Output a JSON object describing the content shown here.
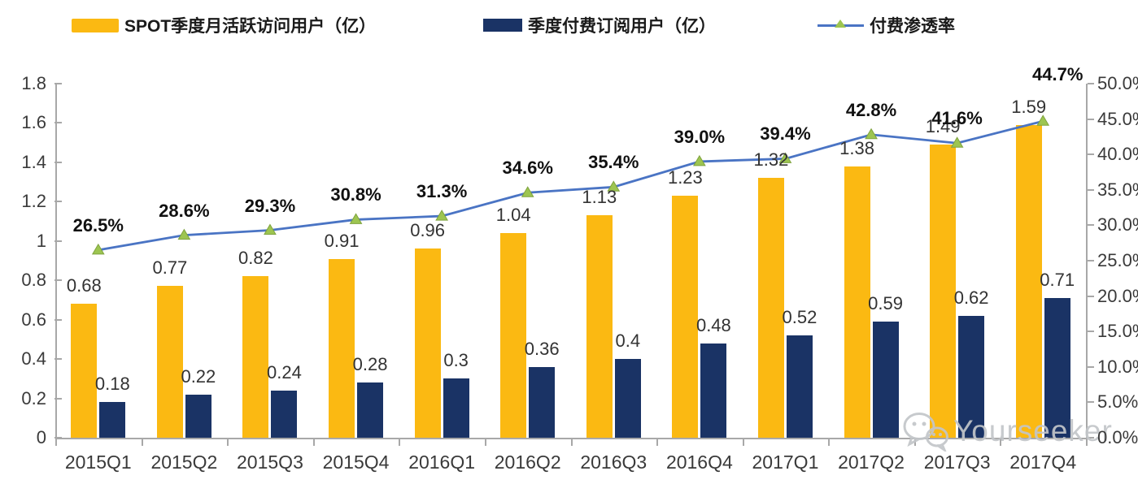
{
  "legend": {
    "items": [
      {
        "label": "SPOT季度月活跃访问用户（亿）",
        "swatch": "yellow-bar"
      },
      {
        "label": "季度付费订阅用户（亿）",
        "swatch": "navy-bar"
      },
      {
        "label": "付费渗透率",
        "swatch": "line-triangle-marker"
      }
    ]
  },
  "chart_data": {
    "type": "bar+line",
    "categories": [
      "2015Q1",
      "2015Q2",
      "2015Q3",
      "2015Q4",
      "2016Q1",
      "2016Q2",
      "2016Q3",
      "2016Q4",
      "2017Q1",
      "2017Q2",
      "2017Q3",
      "2017Q4"
    ],
    "series": [
      {
        "name": "SPOT季度月活跃访问用户（亿）",
        "type": "bar",
        "axis": "left",
        "color": "#FBB912",
        "values": [
          0.68,
          0.77,
          0.82,
          0.91,
          0.96,
          1.04,
          1.13,
          1.23,
          1.32,
          1.38,
          1.49,
          1.59
        ],
        "labels": [
          "0.68",
          "0.77",
          "0.82",
          "0.91",
          "0.96",
          "1.04",
          "1.13",
          "1.23",
          "1.32",
          "1.38",
          "1.49",
          "1.59"
        ]
      },
      {
        "name": "季度付费订阅用户（亿）",
        "type": "bar",
        "axis": "left",
        "color": "#1A3365",
        "values": [
          0.18,
          0.22,
          0.24,
          0.28,
          0.3,
          0.36,
          0.4,
          0.48,
          0.52,
          0.59,
          0.62,
          0.71
        ],
        "labels": [
          "0.18",
          "0.22",
          "0.24",
          "0.28",
          "0.3",
          "0.36",
          "0.4",
          "0.48",
          "0.52",
          "0.59",
          "0.62",
          "0.71"
        ]
      },
      {
        "name": "付费渗透率",
        "type": "line",
        "axis": "right",
        "color": "#4A74C4",
        "marker": "triangle-up",
        "marker_color": "#9DC551",
        "marker_edge_color": "#7FA33E",
        "values": [
          26.5,
          28.6,
          29.3,
          30.8,
          31.3,
          34.6,
          35.4,
          39.0,
          39.4,
          42.8,
          41.6,
          44.7
        ],
        "labels": [
          "26.5%",
          "28.6%",
          "29.3%",
          "30.8%",
          "31.3%",
          "34.6%",
          "35.4%",
          "39.0%",
          "39.4%",
          "42.8%",
          "41.6%",
          "44.7%"
        ]
      }
    ],
    "left_axis": {
      "min": 0,
      "max": 1.8,
      "ticks": [
        "0",
        "0.2",
        "0.4",
        "0.6",
        "0.8",
        "1",
        "1.2",
        "1.4",
        "1.6",
        "1.8"
      ]
    },
    "right_axis": {
      "min": 0,
      "max": 50,
      "ticks": [
        "0.0%",
        "5.0%",
        "10.0%",
        "15.0%",
        "20.0%",
        "25.0%",
        "30.0%",
        "35.0%",
        "40.0%",
        "45.0%",
        "50.0%"
      ]
    },
    "grid": false,
    "legend_position": "top",
    "title": ""
  },
  "watermark": {
    "text": "Yourseeker",
    "icon": "wechat-icon"
  },
  "colors": {
    "mau_bar": "#FBB912",
    "subs_bar": "#1A3365",
    "line": "#4A74C4",
    "marker_fill": "#9DC551",
    "marker_edge": "#7FA33E",
    "axis": "#A8A8A8",
    "tick_text": "#3A3A3A",
    "bar_label_text": "#333333",
    "pct_label_text": "#111111",
    "legend_text": "#1A1A1A",
    "watermark": "#C3C6C9"
  }
}
